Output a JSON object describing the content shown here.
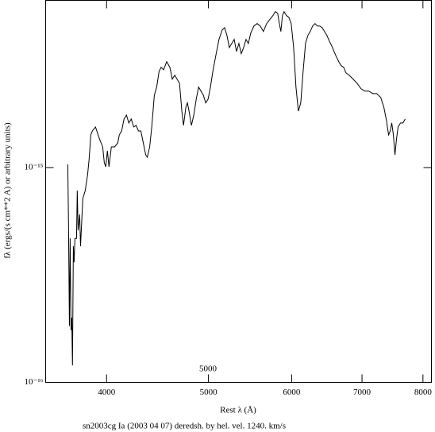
{
  "chart_data": {
    "type": "line",
    "ylabel": "fλ (ergs/(s cm**2 A) or arbitrary units)",
    "xlabel": "Rest λ (Å)",
    "caption": "sn2003cg Ia (2003 04 07) deredsh. by hel. vel.  1240. km/s",
    "annotation": "5000",
    "xlog": true,
    "ylog": true,
    "xlim": [
      3500,
      8150
    ],
    "ylim": [
      1e-16,
      6e-15
    ],
    "xticks": [
      4000,
      5000,
      6000,
      7000,
      8000
    ],
    "yticks": [
      {
        "value": 1e-16,
        "label": "10⁻¹⁶"
      },
      {
        "value": 1e-15,
        "label": "10⁻¹⁵"
      }
    ],
    "series": [
      {
        "color": "#000000",
        "x": [
          3674,
          3680,
          3687,
          3693,
          3700,
          3706,
          3712,
          3719,
          3725,
          3732,
          3745,
          3751,
          3758,
          3771,
          3778,
          3797,
          3817,
          3837,
          3850,
          3864,
          3877,
          3904,
          3938,
          3966,
          3980,
          3993,
          4007,
          4021,
          4042,
          4071,
          4099,
          4113,
          4134,
          4156,
          4178,
          4200,
          4222,
          4245,
          4267,
          4290,
          4312,
          4335,
          4358,
          4373,
          4396,
          4416,
          4441,
          4464,
          4488,
          4508,
          4532,
          4563,
          4595,
          4619,
          4644,
          4668,
          4693,
          4717,
          4734,
          4759,
          4775,
          4792,
          4817,
          4842,
          4868,
          4893,
          4919,
          4945,
          4970,
          4996,
          5022,
          5049,
          5082,
          5117,
          5153,
          5180,
          5207,
          5234,
          5262,
          5290,
          5317,
          5345,
          5373,
          5401,
          5429,
          5457,
          5486,
          5524,
          5563,
          5601,
          5640,
          5680,
          5719,
          5759,
          5789,
          5819,
          5840,
          5860,
          5880,
          5901,
          5932,
          5963,
          5994,
          6026,
          6057,
          6089,
          6121,
          6153,
          6185,
          6217,
          6249,
          6282,
          6315,
          6348,
          6380,
          6414,
          6448,
          6482,
          6516,
          6550,
          6584,
          6619,
          6653,
          6688,
          6724,
          6758,
          6806,
          6865,
          6924,
          6984,
          7045,
          7106,
          7167,
          7229,
          7293,
          7343,
          7381,
          7420,
          7446,
          7472,
          7498,
          7524,
          7550,
          7576,
          7616,
          7656,
          7695
        ],
        "values": [
          1.035e-15,
          5.37e-16,
          1.83e-16,
          4.68e-16,
          1.75e-16,
          2e-16,
          1.2e-16,
          4.3e-16,
          3.62e-16,
          4.68e-16,
          4.68e-16,
          7.81e-16,
          5.1e-16,
          6.05e-16,
          4.3e-16,
          7.17e-16,
          7.81e-16,
          9.26e-16,
          1.099e-15,
          1.419e-15,
          1.48e-15,
          1.545e-15,
          1.359e-15,
          1.248e-15,
          1.052e-15,
          1.009e-15,
          1.196e-15,
          1.009e-15,
          1.248e-15,
          1.248e-15,
          1.302e-15,
          1.419e-15,
          1.48e-15,
          1.683e-15,
          1.755e-15,
          1.612e-15,
          1.683e-15,
          1.545e-15,
          1.571e-15,
          1.48e-15,
          1.48e-15,
          1.302e-15,
          1.146e-15,
          1.117e-15,
          1.248e-15,
          1.545e-15,
          2.17e-15,
          2.37e-15,
          2.81e-15,
          2.93e-15,
          2.85e-15,
          3.11e-15,
          2.93e-15,
          2.58e-15,
          2.69e-15,
          2.58e-15,
          2.47e-15,
          1.83e-15,
          1.571e-15,
          1.91e-15,
          2e-15,
          1.83e-15,
          1.571e-15,
          1.755e-15,
          2.08e-15,
          2.37e-15,
          2.27e-15,
          2.17e-15,
          2e-15,
          2.08e-15,
          2.37e-15,
          2.81e-15,
          3.33e-15,
          3.95e-15,
          4.37e-15,
          4.48e-15,
          4.12e-15,
          3.62e-15,
          3.78e-15,
          3.95e-15,
          3.47e-15,
          3.78e-15,
          3.39e-15,
          3.62e-15,
          3.95e-15,
          3.78e-15,
          4.23e-15,
          4.56e-15,
          4.68e-15,
          4.56e-15,
          4.3e-15,
          4.68e-15,
          4.89e-15,
          5.1e-15,
          5.32e-15,
          5.23e-15,
          4.68e-15,
          4.3e-15,
          5.1e-15,
          5.32e-15,
          5.1e-15,
          5.01e-15,
          4.68e-15,
          3.62e-15,
          2.37e-15,
          1.83e-15,
          2e-15,
          2.81e-15,
          3.78e-15,
          4.12e-15,
          4.3e-15,
          4.56e-15,
          4.68e-15,
          4.56e-15,
          4.56e-15,
          4.48e-15,
          4.3e-15,
          4.12e-15,
          3.88e-15,
          3.69e-15,
          3.47e-15,
          3.27e-15,
          3.11e-15,
          2.98e-15,
          2.93e-15,
          2.76e-15,
          2.69e-15,
          2.58e-15,
          2.47e-15,
          2.33e-15,
          2.27e-15,
          2.27e-15,
          2.21e-15,
          2.21e-15,
          2.12e-15,
          1.91e-15,
          1.683e-15,
          1.419e-15,
          1.48e-15,
          1.612e-15,
          1.419e-15,
          1.146e-15,
          1.359e-15,
          1.545e-15,
          1.612e-15,
          1.612e-15,
          1.683e-15
        ]
      }
    ]
  }
}
